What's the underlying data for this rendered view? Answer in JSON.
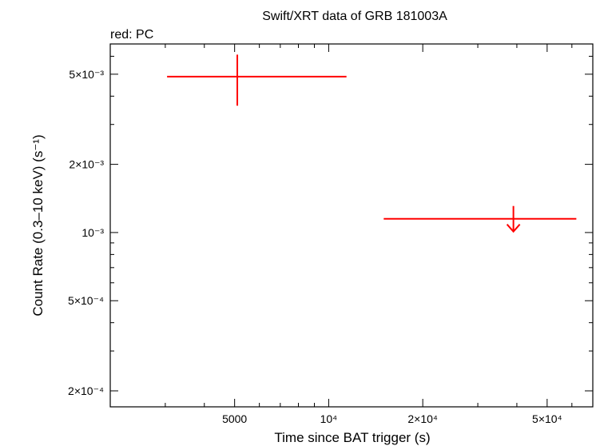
{
  "chart_data": {
    "type": "scatter",
    "title": "Swift/XRT data of GRB 181003A",
    "subtitle": "red: PC",
    "xlabel": "Time since BAT trigger (s)",
    "ylabel": "Count Rate (0.3–10 keV) (s⁻¹)",
    "xscale": "log",
    "yscale": "log",
    "xlim": [
      2000,
      70000
    ],
    "ylim": [
      0.00017,
      0.0068
    ],
    "x_ticks": [
      {
        "value": 5000,
        "label": "5000"
      },
      {
        "value": 10000,
        "label": "10⁴"
      },
      {
        "value": 20000,
        "label": "2×10⁴"
      },
      {
        "value": 50000,
        "label": "5×10⁴"
      }
    ],
    "y_ticks": [
      {
        "value": 0.0002,
        "label": "2×10⁻⁴"
      },
      {
        "value": 0.0005,
        "label": "5×10⁻⁴"
      },
      {
        "value": 0.001,
        "label": "10⁻³"
      },
      {
        "value": 0.002,
        "label": "2×10⁻³"
      },
      {
        "value": 0.005,
        "label": "5×10⁻³"
      }
    ],
    "series": [
      {
        "color": "#ff0000",
        "points": [
          {
            "x": 5100,
            "y": 0.00488,
            "xmin": 3040,
            "xmax": 11400,
            "ymin": 0.00363,
            "ymax": 0.0061,
            "upper_limit": false
          },
          {
            "x": 39000,
            "y": 0.00115,
            "xmin": 15000,
            "xmax": 62000,
            "upper_limit": true
          }
        ]
      }
    ],
    "grid": false
  }
}
